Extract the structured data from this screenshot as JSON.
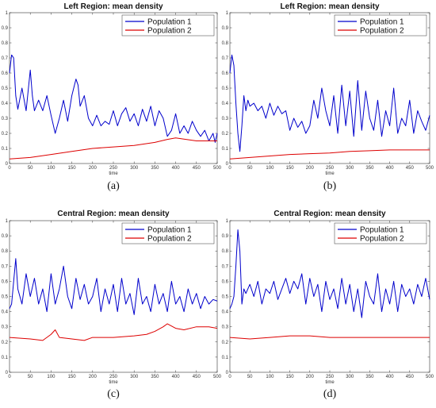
{
  "chart_data": [
    {
      "type": "line",
      "title": "Left Region: mean density",
      "caption": "(a)",
      "xlabel": "time",
      "xlim": [
        0,
        500
      ],
      "ylim": [
        0,
        1
      ],
      "xticks": [
        "0",
        "50",
        "100",
        "150",
        "200",
        "250",
        "300",
        "350",
        "400",
        "450",
        "500"
      ],
      "yticks": [
        "0",
        "0.1",
        "0.2",
        "0.3",
        "0.4",
        "0.5",
        "0.6",
        "0.7",
        "0.8",
        "0.9",
        "1"
      ],
      "legend_position": "top-right",
      "colors": [
        "#0000cc",
        "#dd0000"
      ],
      "series": [
        {
          "name": "Population 1",
          "x": [
            0,
            5,
            10,
            15,
            20,
            30,
            40,
            50,
            55,
            60,
            70,
            80,
            90,
            100,
            110,
            120,
            130,
            140,
            150,
            160,
            165,
            170,
            180,
            190,
            200,
            210,
            220,
            230,
            240,
            250,
            260,
            270,
            280,
            290,
            300,
            310,
            320,
            330,
            340,
            350,
            360,
            370,
            380,
            390,
            400,
            410,
            420,
            430,
            440,
            450,
            460,
            470,
            480,
            490,
            495,
            500
          ],
          "y": [
            0.6,
            0.72,
            0.7,
            0.45,
            0.36,
            0.5,
            0.35,
            0.62,
            0.45,
            0.35,
            0.42,
            0.35,
            0.45,
            0.32,
            0.2,
            0.3,
            0.42,
            0.28,
            0.45,
            0.56,
            0.52,
            0.38,
            0.45,
            0.3,
            0.25,
            0.32,
            0.25,
            0.28,
            0.26,
            0.35,
            0.25,
            0.33,
            0.37,
            0.28,
            0.33,
            0.25,
            0.36,
            0.28,
            0.38,
            0.25,
            0.35,
            0.3,
            0.18,
            0.22,
            0.33,
            0.2,
            0.25,
            0.2,
            0.28,
            0.22,
            0.18,
            0.22,
            0.15,
            0.2,
            0.14,
            0.2
          ]
        },
        {
          "name": "Population 2",
          "x": [
            0,
            50,
            100,
            150,
            200,
            250,
            300,
            350,
            380,
            400,
            450,
            500
          ],
          "y": [
            0.03,
            0.04,
            0.06,
            0.08,
            0.1,
            0.11,
            0.12,
            0.14,
            0.16,
            0.17,
            0.15,
            0.15
          ]
        }
      ]
    },
    {
      "type": "line",
      "title": "Left Region: mean density",
      "caption": "(b)",
      "xlabel": "time",
      "xlim": [
        0,
        500
      ],
      "ylim": [
        0,
        1
      ],
      "xticks": [
        "0",
        "50",
        "100",
        "150",
        "200",
        "250",
        "300",
        "350",
        "400",
        "450",
        "500"
      ],
      "yticks": [
        "0",
        "0.1",
        "0.2",
        "0.3",
        "0.4",
        "0.5",
        "0.6",
        "0.7",
        "0.8",
        "0.9",
        "1"
      ],
      "legend_position": "top-right",
      "colors": [
        "#0000cc",
        "#dd0000"
      ],
      "series": [
        {
          "name": "Population 1",
          "x": [
            0,
            5,
            10,
            15,
            20,
            25,
            30,
            35,
            40,
            45,
            50,
            60,
            70,
            80,
            90,
            100,
            110,
            120,
            130,
            140,
            150,
            160,
            170,
            180,
            190,
            200,
            210,
            220,
            230,
            240,
            250,
            260,
            270,
            280,
            290,
            300,
            310,
            320,
            330,
            340,
            350,
            360,
            370,
            380,
            390,
            400,
            410,
            420,
            430,
            440,
            450,
            460,
            470,
            480,
            490,
            500
          ],
          "y": [
            0.6,
            0.72,
            0.65,
            0.4,
            0.2,
            0.08,
            0.25,
            0.45,
            0.35,
            0.42,
            0.38,
            0.4,
            0.35,
            0.38,
            0.3,
            0.4,
            0.32,
            0.38,
            0.33,
            0.35,
            0.22,
            0.3,
            0.24,
            0.28,
            0.2,
            0.25,
            0.42,
            0.3,
            0.5,
            0.35,
            0.25,
            0.45,
            0.2,
            0.52,
            0.25,
            0.48,
            0.18,
            0.55,
            0.22,
            0.48,
            0.3,
            0.22,
            0.42,
            0.18,
            0.35,
            0.25,
            0.5,
            0.2,
            0.3,
            0.25,
            0.42,
            0.2,
            0.35,
            0.28,
            0.22,
            0.32
          ]
        },
        {
          "name": "Population 2",
          "x": [
            0,
            50,
            100,
            150,
            200,
            250,
            300,
            350,
            400,
            450,
            500
          ],
          "y": [
            0.03,
            0.04,
            0.05,
            0.06,
            0.065,
            0.07,
            0.08,
            0.085,
            0.09,
            0.09,
            0.09
          ]
        }
      ]
    },
    {
      "type": "line",
      "title": "Central Region: mean density",
      "caption": "(c)",
      "xlabel": "time",
      "xlim": [
        0,
        500
      ],
      "ylim": [
        0,
        1
      ],
      "xticks": [
        "0",
        "50",
        "100",
        "150",
        "200",
        "250",
        "300",
        "350",
        "400",
        "450",
        "500"
      ],
      "yticks": [
        "0",
        "0.1",
        "0.2",
        "0.3",
        "0.4",
        "0.5",
        "0.6",
        "0.7",
        "0.8",
        "0.9",
        "1"
      ],
      "legend_position": "top-right",
      "colors": [
        "#0000cc",
        "#dd0000"
      ],
      "series": [
        {
          "name": "Population 1",
          "x": [
            0,
            5,
            10,
            15,
            20,
            30,
            40,
            50,
            60,
            70,
            80,
            90,
            100,
            110,
            120,
            130,
            140,
            150,
            160,
            170,
            180,
            190,
            200,
            210,
            220,
            230,
            240,
            250,
            260,
            270,
            280,
            290,
            300,
            310,
            320,
            330,
            340,
            350,
            360,
            370,
            380,
            390,
            400,
            410,
            420,
            430,
            440,
            450,
            460,
            470,
            480,
            490,
            500
          ],
          "y": [
            0.42,
            0.45,
            0.6,
            0.75,
            0.55,
            0.45,
            0.65,
            0.5,
            0.62,
            0.45,
            0.55,
            0.4,
            0.65,
            0.45,
            0.55,
            0.7,
            0.5,
            0.42,
            0.62,
            0.48,
            0.58,
            0.45,
            0.5,
            0.62,
            0.4,
            0.55,
            0.45,
            0.58,
            0.4,
            0.62,
            0.45,
            0.52,
            0.38,
            0.62,
            0.45,
            0.5,
            0.4,
            0.58,
            0.45,
            0.52,
            0.4,
            0.6,
            0.45,
            0.5,
            0.4,
            0.55,
            0.45,
            0.52,
            0.42,
            0.5,
            0.45,
            0.48,
            0.47
          ]
        },
        {
          "name": "Population 2",
          "x": [
            0,
            50,
            80,
            100,
            110,
            120,
            150,
            180,
            200,
            250,
            300,
            330,
            350,
            370,
            380,
            400,
            420,
            450,
            480,
            500
          ],
          "y": [
            0.23,
            0.22,
            0.21,
            0.25,
            0.28,
            0.23,
            0.22,
            0.21,
            0.23,
            0.23,
            0.24,
            0.25,
            0.27,
            0.3,
            0.32,
            0.29,
            0.28,
            0.3,
            0.3,
            0.29
          ]
        }
      ]
    },
    {
      "type": "line",
      "title": "Central Region: mean density",
      "caption": "(d)",
      "xlabel": "time",
      "xlim": [
        0,
        500
      ],
      "ylim": [
        0,
        1
      ],
      "xticks": [
        "0",
        "50",
        "100",
        "150",
        "200",
        "250",
        "300",
        "350",
        "400",
        "450",
        "500"
      ],
      "yticks": [
        "0",
        "0.1",
        "0.2",
        "0.3",
        "0.4",
        "0.5",
        "0.6",
        "0.7",
        "0.8",
        "0.9",
        "1"
      ],
      "legend_position": "top-right",
      "colors": [
        "#0000cc",
        "#dd0000"
      ],
      "series": [
        {
          "name": "Population 1",
          "x": [
            0,
            5,
            10,
            15,
            20,
            25,
            30,
            35,
            40,
            50,
            60,
            70,
            80,
            90,
            100,
            110,
            120,
            130,
            140,
            150,
            160,
            170,
            180,
            190,
            200,
            210,
            220,
            230,
            240,
            250,
            260,
            270,
            280,
            290,
            300,
            310,
            320,
            330,
            340,
            350,
            360,
            370,
            380,
            390,
            400,
            410,
            420,
            430,
            440,
            450,
            460,
            470,
            480,
            490,
            500
          ],
          "y": [
            0.42,
            0.45,
            0.5,
            0.7,
            0.94,
            0.8,
            0.45,
            0.55,
            0.52,
            0.58,
            0.5,
            0.6,
            0.45,
            0.55,
            0.52,
            0.6,
            0.48,
            0.55,
            0.62,
            0.52,
            0.6,
            0.55,
            0.65,
            0.45,
            0.62,
            0.5,
            0.58,
            0.4,
            0.6,
            0.48,
            0.55,
            0.42,
            0.62,
            0.45,
            0.58,
            0.4,
            0.55,
            0.36,
            0.6,
            0.5,
            0.45,
            0.65,
            0.4,
            0.55,
            0.45,
            0.6,
            0.4,
            0.58,
            0.5,
            0.55,
            0.45,
            0.58,
            0.5,
            0.62,
            0.48
          ]
        },
        {
          "name": "Population 2",
          "x": [
            0,
            50,
            100,
            150,
            200,
            250,
            300,
            350,
            400,
            450,
            500
          ],
          "y": [
            0.23,
            0.22,
            0.23,
            0.24,
            0.24,
            0.23,
            0.23,
            0.23,
            0.23,
            0.23,
            0.23
          ]
        }
      ]
    }
  ]
}
